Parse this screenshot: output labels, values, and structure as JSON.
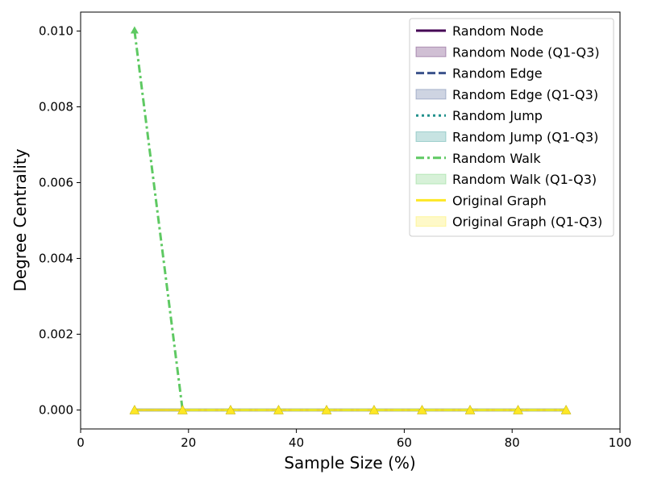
{
  "chart_data": {
    "type": "line",
    "title": "",
    "xlabel": "Sample Size (%)",
    "ylabel": "Degree Centrality",
    "xlim": [
      0,
      100
    ],
    "ylim": [
      -0.0005,
      0.0105
    ],
    "xticks": [
      0,
      20,
      40,
      60,
      80,
      100
    ],
    "yticks": [
      0.0,
      0.002,
      0.004,
      0.006,
      0.008,
      0.01
    ],
    "ytick_labels": [
      "0.000",
      "0.002",
      "0.004",
      "0.006",
      "0.008",
      "0.010"
    ],
    "x": [
      10,
      18.9,
      27.8,
      36.7,
      45.6,
      54.4,
      63.3,
      72.2,
      81.1,
      90
    ],
    "legend_position": "upper-right",
    "series": [
      {
        "name": "Random Node",
        "values": [
          0,
          0,
          0,
          0,
          0,
          0,
          0,
          0,
          0,
          0
        ],
        "color": "#440154",
        "style": "solid"
      },
      {
        "name": "Random Edge",
        "values": [
          0,
          0,
          0,
          0,
          0,
          0,
          0,
          0,
          0,
          0
        ],
        "color": "#3b528b",
        "style": "dashed"
      },
      {
        "name": "Random Jump",
        "values": [
          0,
          0,
          0,
          0,
          0,
          0,
          0,
          0,
          0,
          0
        ],
        "color": "#21918c",
        "style": "dotted"
      },
      {
        "name": "Random Walk",
        "values": [
          0.01,
          0,
          0,
          0,
          0,
          0,
          0,
          0,
          0,
          0
        ],
        "color": "#5ec962",
        "style": "dashdot"
      },
      {
        "name": "Original Graph",
        "values": [
          0,
          0,
          0,
          0,
          0,
          0,
          0,
          0,
          0,
          0
        ],
        "color": "#fde725",
        "style": "solid",
        "marker": "triangle"
      }
    ],
    "bands": [
      {
        "name": "Random Node (Q1-Q3)",
        "color": "#440154"
      },
      {
        "name": "Random Edge (Q1-Q3)",
        "color": "#3b528b"
      },
      {
        "name": "Random Jump (Q1-Q3)",
        "color": "#21918c"
      },
      {
        "name": "Random Walk (Q1-Q3)",
        "color": "#5ec962"
      },
      {
        "name": "Original Graph (Q1-Q3)",
        "color": "#fde725"
      }
    ],
    "legend_order": [
      {
        "kind": "line",
        "index": 0
      },
      {
        "kind": "band",
        "index": 0
      },
      {
        "kind": "line",
        "index": 1
      },
      {
        "kind": "band",
        "index": 1
      },
      {
        "kind": "line",
        "index": 2
      },
      {
        "kind": "band",
        "index": 2
      },
      {
        "kind": "line",
        "index": 3
      },
      {
        "kind": "band",
        "index": 3
      },
      {
        "kind": "line",
        "index": 4
      },
      {
        "kind": "band",
        "index": 4
      }
    ]
  }
}
